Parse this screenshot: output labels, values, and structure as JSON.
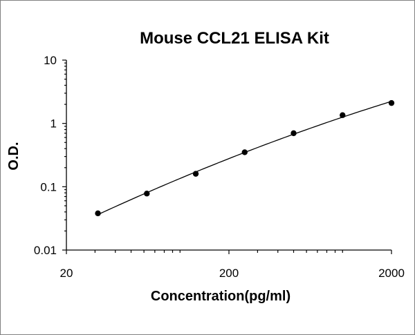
{
  "chart_data": {
    "type": "scatter",
    "title": "Mouse CCL21 ELISA Kit",
    "xlabel": "Concentration(pg/ml)",
    "ylabel": "O.D.",
    "x_scale": "log",
    "y_scale": "log",
    "xlim": [
      20,
      2000
    ],
    "ylim": [
      0.01,
      10
    ],
    "x_ticks": [
      20,
      200,
      2000
    ],
    "x_tick_labels": [
      "20",
      "200",
      "2000"
    ],
    "y_ticks": [
      0.01,
      0.1,
      1,
      10
    ],
    "y_tick_labels": [
      "0.01",
      "0.1",
      "1",
      "10"
    ],
    "grid": false,
    "legend": "none",
    "series": [
      {
        "points": [
          {
            "x": 31.25,
            "y": 0.038
          },
          {
            "x": 62.5,
            "y": 0.078
          },
          {
            "x": 125,
            "y": 0.16
          },
          {
            "x": 250,
            "y": 0.35
          },
          {
            "x": 500,
            "y": 0.7
          },
          {
            "x": 1000,
            "y": 1.35
          },
          {
            "x": 2000,
            "y": 2.1
          }
        ],
        "fit": "smooth curve"
      }
    ]
  }
}
